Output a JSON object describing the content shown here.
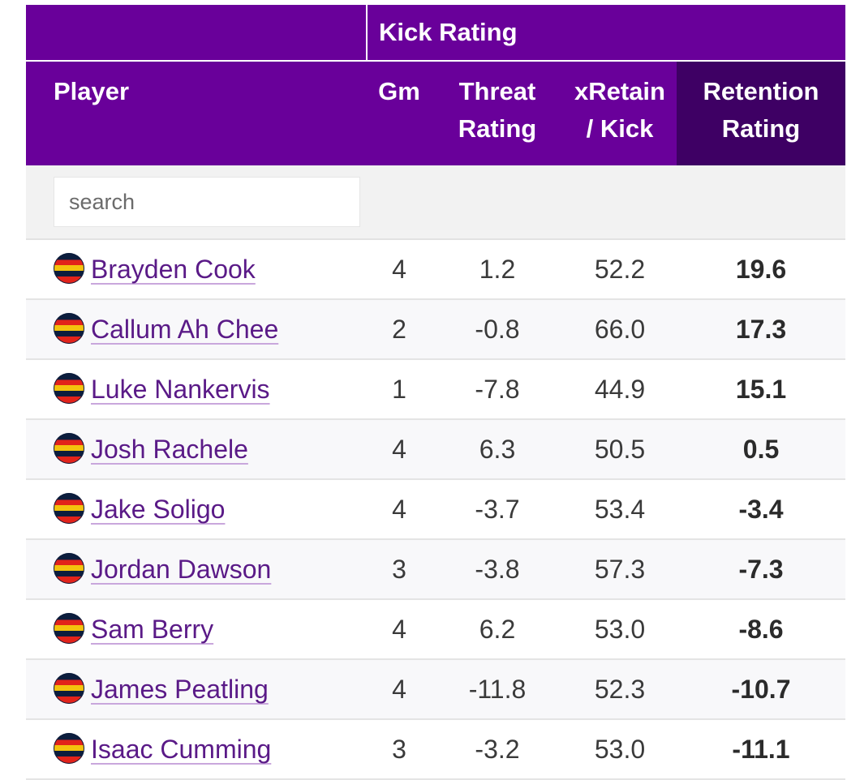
{
  "table": {
    "group_header": "Kick Rating",
    "columns": {
      "player": "Player",
      "gm": "Gm",
      "threat_line1": "Threat",
      "threat_line2": "Rating",
      "xretain_line1": "xRetain",
      "xretain_line2": "/ Kick",
      "retention_line1": "Retention",
      "retention_line2": "Rating"
    },
    "search_placeholder": "search",
    "rows": [
      {
        "player": "Brayden Cook",
        "gm": "4",
        "threat": "1.2",
        "xretain": "52.2",
        "retention": "19.6"
      },
      {
        "player": "Callum Ah Chee",
        "gm": "2",
        "threat": "-0.8",
        "xretain": "66.0",
        "retention": "17.3"
      },
      {
        "player": "Luke Nankervis",
        "gm": "1",
        "threat": "-7.8",
        "xretain": "44.9",
        "retention": "15.1"
      },
      {
        "player": "Josh Rachele",
        "gm": "4",
        "threat": "6.3",
        "xretain": "50.5",
        "retention": "0.5"
      },
      {
        "player": "Jake Soligo",
        "gm": "4",
        "threat": "-3.7",
        "xretain": "53.4",
        "retention": "-3.4"
      },
      {
        "player": "Jordan Dawson",
        "gm": "3",
        "threat": "-3.8",
        "xretain": "57.3",
        "retention": "-7.3"
      },
      {
        "player": "Sam Berry",
        "gm": "4",
        "threat": "6.2",
        "xretain": "53.0",
        "retention": "-8.6"
      },
      {
        "player": "James Peatling",
        "gm": "4",
        "threat": "-11.8",
        "xretain": "52.3",
        "retention": "-10.7"
      },
      {
        "player": "Isaac Cumming",
        "gm": "3",
        "threat": "-3.2",
        "xretain": "53.0",
        "retention": "-11.1"
      }
    ],
    "team_logo_icon": "adelaide-crows-logo-icon",
    "colors": {
      "header_bg": "#69009a",
      "sorted_header_bg": "#3e0064",
      "link": "#5a1a87"
    }
  }
}
